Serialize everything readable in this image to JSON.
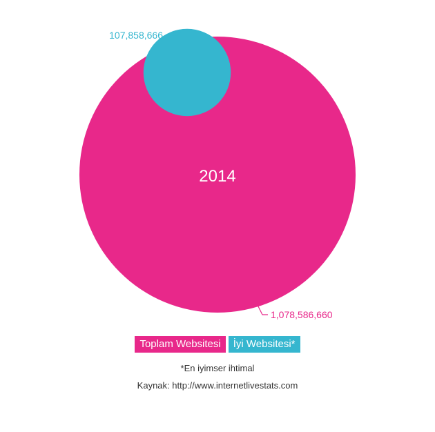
{
  "chart_data": {
    "type": "bubble",
    "title": "2014",
    "series": [
      {
        "name": "Toplam Websitesi",
        "value": 1078586660,
        "label": "1,078,586,660",
        "color": "#e8288a"
      },
      {
        "name": "İyi Websitesi*",
        "value": 107858666,
        "label": "107,858,666",
        "color": "#35b6cf"
      }
    ],
    "legend_position": "bottom-center"
  },
  "notes": {
    "footnote": "*En iyimser ihtimal",
    "source": "Kaynak: http://www.internetlivestats.com"
  }
}
